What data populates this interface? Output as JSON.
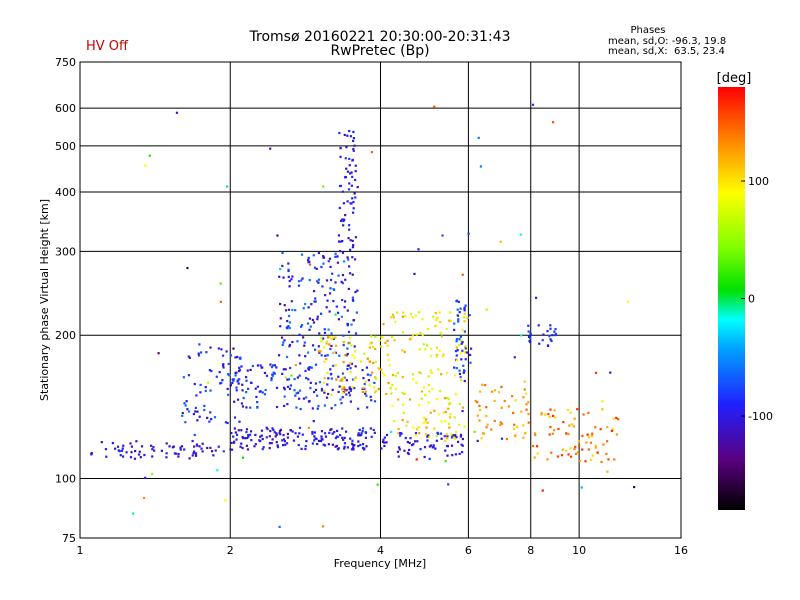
{
  "status": {
    "hv_label": "HV Off"
  },
  "chart_data": {
    "type": "scatter",
    "title": "Tromsø 20160221 20:30:00-20:31:43",
    "subtitle": "RwPretec (Bp)",
    "xlabel": "Frequency [MHz]",
    "ylabel": "Stationary phase Virtual Height [km]",
    "x_scale": "log2",
    "y_scale": "log",
    "xlim": [
      1,
      16
    ],
    "ylim": [
      75,
      750
    ],
    "x_ticks": [
      1,
      2,
      4,
      6,
      8,
      10,
      16
    ],
    "y_ticks": [
      75,
      100,
      200,
      300,
      400,
      500,
      600,
      750
    ],
    "grid": true,
    "phases_box": {
      "header": "Phases",
      "line_o": "mean, sd,O: -96.3, 19.8",
      "line_x": "mean, sd,X:  63.5, 23.4"
    },
    "colorbar": {
      "unit": "[deg]",
      "range": [
        -180,
        180
      ],
      "ticks": [
        100,
        0,
        -100
      ]
    },
    "clusters": [
      {
        "f": [
          1.05,
          1.9
        ],
        "h": [
          110,
          120
        ],
        "phase": [
          -120,
          -90
        ],
        "n": 70
      },
      {
        "f": [
          1.6,
          2.1
        ],
        "h": [
          130,
          195
        ],
        "phase": [
          -115,
          -60
        ],
        "n": 75
      },
      {
        "f": [
          2.0,
          3.9
        ],
        "h": [
          115,
          128
        ],
        "phase": [
          -120,
          -80
        ],
        "n": 160
      },
      {
        "f": [
          2.0,
          3.9
        ],
        "h": [
          140,
          175
        ],
        "phase": [
          -120,
          -60
        ],
        "n": 170
      },
      {
        "f": [
          2.5,
          3.6
        ],
        "h": [
          180,
          300
        ],
        "phase": [
          -125,
          -50
        ],
        "n": 170
      },
      {
        "f": [
          3.3,
          3.6
        ],
        "h": [
          300,
          540
        ],
        "phase": [
          -120,
          -80
        ],
        "n": 70
      },
      {
        "f": [
          3.0,
          4.2
        ],
        "h": [
          150,
          200
        ],
        "phase": [
          60,
          140
        ],
        "n": 90
      },
      {
        "f": [
          3.9,
          5.9
        ],
        "h": [
          110,
          125
        ],
        "phase": [
          -120,
          -80
        ],
        "n": 70
      },
      {
        "f": [
          4.0,
          6.0
        ],
        "h": [
          180,
          225
        ],
        "phase": [
          60,
          130
        ],
        "n": 70
      },
      {
        "f": [
          4.2,
          5.9
        ],
        "h": [
          120,
          170
        ],
        "phase": [
          60,
          130
        ],
        "n": 90
      },
      {
        "f": [
          5.6,
          6.1
        ],
        "h": [
          160,
          240
        ],
        "phase": [
          -110,
          -60
        ],
        "n": 45
      },
      {
        "f": [
          6.2,
          8.0
        ],
        "h": [
          120,
          160
        ],
        "phase": [
          100,
          150
        ],
        "n": 50
      },
      {
        "f": [
          7.8,
          9.0
        ],
        "h": [
          190,
          210
        ],
        "phase": [
          -110,
          -70
        ],
        "n": 25
      },
      {
        "f": [
          8.0,
          12.0
        ],
        "h": [
          108,
          140
        ],
        "phase": [
          100,
          170
        ],
        "n": 80
      },
      {
        "f": [
          1.2,
          13
        ],
        "h": [
          78,
          620
        ],
        "phase": [
          -150,
          180
        ],
        "n": 70
      }
    ]
  }
}
